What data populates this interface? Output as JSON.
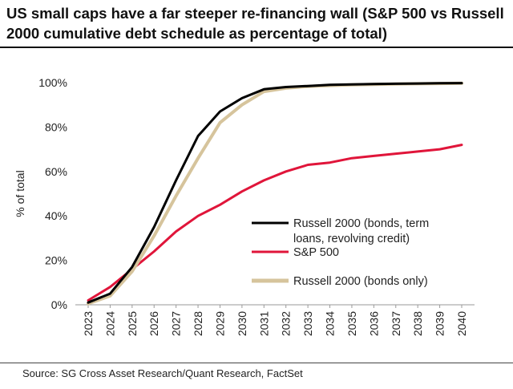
{
  "header": {
    "title": "US small caps have a far steeper re-financing wall (S&P 500 vs Russell 2000 cumulative debt schedule as percentage of total)"
  },
  "footer": {
    "source": "Source: SG Cross Asset Research/Quant Research, FactSet"
  },
  "chart_data": {
    "type": "line",
    "title": "US small caps have a far steeper re-financing wall (S&P 500 vs Russell 2000 cumulative debt schedule as percentage of total)",
    "xlabel": "",
    "ylabel": "% of total",
    "ylim": [
      0,
      100
    ],
    "yticks": [
      0,
      20,
      40,
      60,
      80,
      100
    ],
    "ytick_labels": [
      "0%",
      "20%",
      "40%",
      "60%",
      "80%",
      "100%"
    ],
    "grid": false,
    "legend_position": "center-right",
    "x": [
      "2023",
      "2024",
      "2025",
      "2026",
      "2027",
      "2028",
      "2029",
      "2030",
      "2031",
      "2032",
      "2033",
      "2034",
      "2035",
      "2036",
      "2037",
      "2038",
      "2039",
      "2040"
    ],
    "series": [
      {
        "name": "Russell 2000 (bonds, term loans, revolving credit)",
        "legend_lines": [
          "Russell 2000 (bonds, term",
          "loans, revolving credit)"
        ],
        "color": "#000000",
        "values": [
          1,
          5,
          17,
          35,
          56,
          76,
          87,
          93,
          97,
          98,
          98.5,
          99,
          99.2,
          99.4,
          99.5,
          99.6,
          99.7,
          99.8
        ]
      },
      {
        "name": "S&P 500",
        "legend_lines": [
          "S&P 500"
        ],
        "color": "#e0153a",
        "values": [
          2,
          8,
          16,
          24,
          33,
          40,
          45,
          51,
          56,
          60,
          63,
          64,
          66,
          67,
          68,
          69,
          70,
          72
        ]
      },
      {
        "name": "Russell 2000 (bonds only)",
        "legend_lines": [
          "Russell 2000 (bonds only)"
        ],
        "color": "#d6c49c",
        "values": [
          0.5,
          4,
          15,
          31,
          49,
          66,
          82,
          90,
          96,
          97.5,
          98.3,
          98.7,
          99,
          99.2,
          99.4,
          99.5,
          99.6,
          99.7
        ]
      }
    ]
  }
}
